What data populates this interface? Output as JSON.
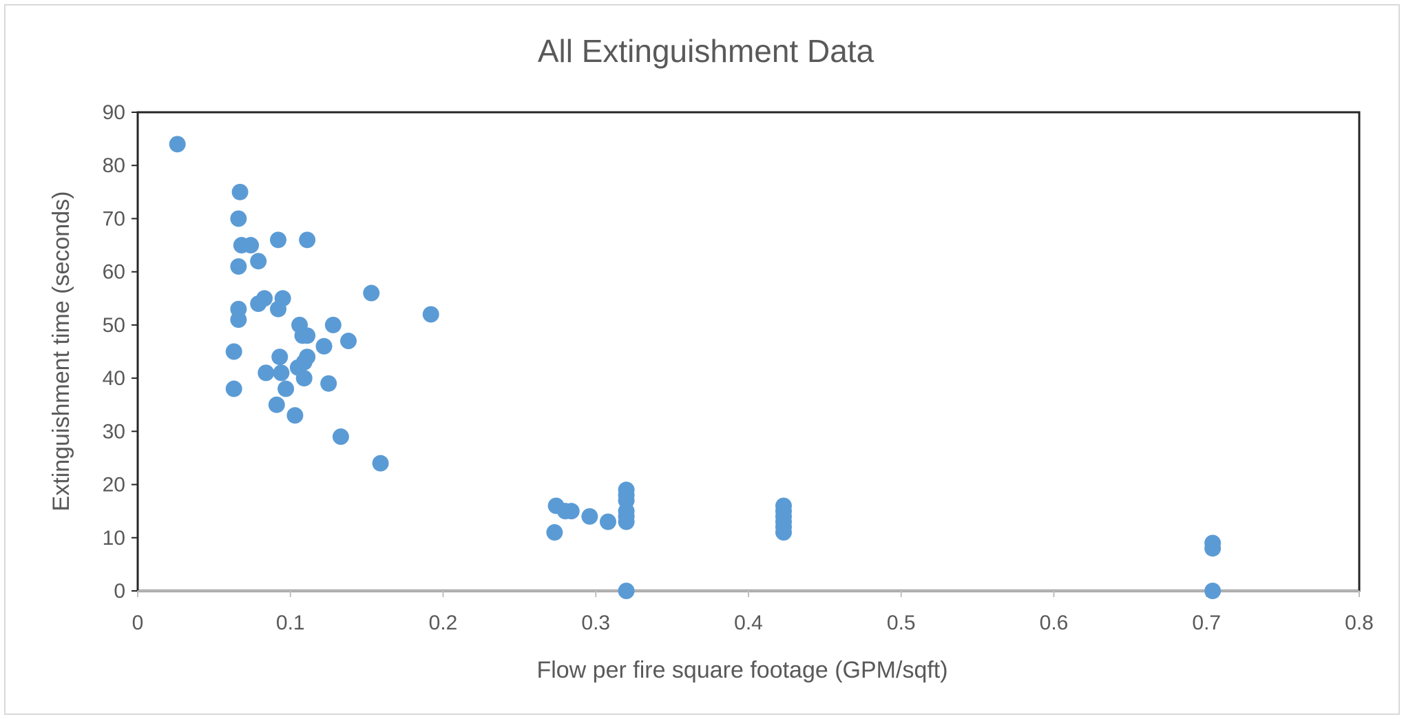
{
  "chart_data": {
    "type": "scatter",
    "title": "All  Extinguishment Data",
    "xlabel": "Flow per fire square footage (GPM/sqft)",
    "ylabel": "Extinguishment time (seconds)",
    "xlim": [
      0,
      0.8
    ],
    "ylim": [
      0,
      90
    ],
    "xticks": [
      "0",
      "0.1",
      "0.2",
      "0.3",
      "0.4",
      "0.5",
      "0.6",
      "0.7",
      "0.8"
    ],
    "yticks": [
      "0",
      "10",
      "20",
      "30",
      "40",
      "50",
      "60",
      "70",
      "80",
      "90"
    ],
    "grid": false,
    "legend": "none",
    "marker_color": "#5b9bd5",
    "series": [
      {
        "points": [
          [
            0.026,
            84
          ],
          [
            0.067,
            75
          ],
          [
            0.066,
            70
          ],
          [
            0.068,
            65
          ],
          [
            0.074,
            65
          ],
          [
            0.066,
            61
          ],
          [
            0.079,
            62
          ],
          [
            0.092,
            66
          ],
          [
            0.111,
            66
          ],
          [
            0.066,
            53
          ],
          [
            0.066,
            51
          ],
          [
            0.079,
            54
          ],
          [
            0.083,
            55
          ],
          [
            0.092,
            53
          ],
          [
            0.095,
            55
          ],
          [
            0.063,
            45
          ],
          [
            0.063,
            38
          ],
          [
            0.084,
            41
          ],
          [
            0.093,
            44
          ],
          [
            0.094,
            41
          ],
          [
            0.097,
            38
          ],
          [
            0.091,
            35
          ],
          [
            0.103,
            33
          ],
          [
            0.106,
            50
          ],
          [
            0.108,
            48
          ],
          [
            0.111,
            48
          ],
          [
            0.105,
            42
          ],
          [
            0.109,
            43
          ],
          [
            0.109,
            40
          ],
          [
            0.111,
            44
          ],
          [
            0.122,
            46
          ],
          [
            0.125,
            39
          ],
          [
            0.128,
            50
          ],
          [
            0.133,
            29
          ],
          [
            0.138,
            47
          ],
          [
            0.153,
            56
          ],
          [
            0.159,
            24
          ],
          [
            0.192,
            52
          ],
          [
            0.273,
            11
          ],
          [
            0.274,
            16
          ],
          [
            0.28,
            15
          ],
          [
            0.284,
            15
          ],
          [
            0.296,
            14
          ],
          [
            0.308,
            13
          ],
          [
            0.32,
            19
          ],
          [
            0.32,
            18
          ],
          [
            0.32,
            17
          ],
          [
            0.32,
            15
          ],
          [
            0.32,
            14
          ],
          [
            0.32,
            13
          ],
          [
            0.32,
            0
          ],
          [
            0.423,
            16
          ],
          [
            0.423,
            15
          ],
          [
            0.423,
            14
          ],
          [
            0.423,
            13
          ],
          [
            0.423,
            12
          ],
          [
            0.423,
            11
          ],
          [
            0.704,
            9
          ],
          [
            0.704,
            8
          ],
          [
            0.704,
            0
          ]
        ]
      }
    ]
  }
}
